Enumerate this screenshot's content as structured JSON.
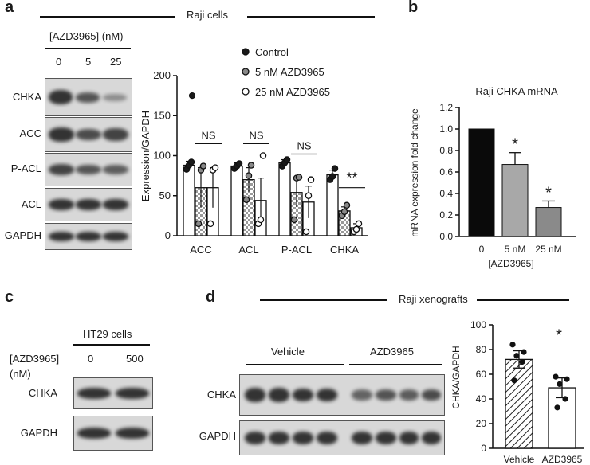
{
  "panels": {
    "a": {
      "label": "a",
      "title": "Raji cells",
      "treatment_label": "[AZD3965] (nM)",
      "lanes": [
        "0",
        "5",
        "25"
      ],
      "blot_rows": [
        "CHKA",
        "ACC",
        "P-ACL",
        "ACL",
        "GAPDH"
      ]
    },
    "b": {
      "label": "b",
      "title": "Raji CHKA mRNA",
      "xgroup_label": "[AZD3965]"
    },
    "c": {
      "label": "c",
      "title": "HT29 cells",
      "treatment_label_1": "[AZD3965]",
      "treatment_label_2": "(nM)",
      "lanes": [
        "0",
        "500"
      ],
      "blot_rows": [
        "CHKA",
        "GAPDH"
      ]
    },
    "d": {
      "label": "d",
      "title": "Raji xenografts",
      "groups": [
        "Vehicle",
        "AZD3965"
      ],
      "blot_rows": [
        "CHKA",
        "GAPDH"
      ]
    }
  },
  "chart_data": [
    {
      "id": "a",
      "type": "bar",
      "categories": [
        "ACC",
        "ACL",
        "P-ACL",
        "CHKA"
      ],
      "ylabel": "Expression/GAPDH",
      "ylim": [
        0,
        200
      ],
      "yticks": [
        0,
        50,
        100,
        150,
        200
      ],
      "legend_position": "top-right",
      "series": [
        {
          "name": "Control",
          "values": [
            88,
            87,
            91,
            76
          ],
          "errors": [
            5,
            4,
            4,
            6
          ],
          "points": [
            [
              83,
              88,
              92
            ],
            [
              84,
              87,
              90
            ],
            [
              87,
              91,
              95
            ],
            [
              70,
              74,
              84
            ]
          ],
          "color": "#ffffff",
          "dot": "#1a1a1a"
        },
        {
          "name": "5 nM AZD3965",
          "values": [
            60,
            70,
            54,
            31
          ],
          "errors": [
            25,
            15,
            18,
            5
          ],
          "points": [
            [
              15,
              82,
              87
            ],
            [
              45,
              75,
              88
            ],
            [
              20,
              72,
              73
            ],
            [
              25,
              30,
              38
            ]
          ],
          "color": "#e6e6e6",
          "dot": "#888888"
        },
        {
          "name": "25 nM AZD3965",
          "values": [
            60,
            44,
            42,
            10
          ],
          "errors": [
            25,
            28,
            20,
            5
          ],
          "points": [
            [
              15,
              82,
              85
            ],
            [
              15,
              20,
              100
            ],
            [
              5,
              50,
              70
            ],
            [
              5,
              8,
              15
            ]
          ],
          "color": "#ffffff",
          "dot": "#ffffff"
        }
      ],
      "control_extra": {
        "ACC": 175
      },
      "significance": [
        {
          "category": "ACC",
          "text": "NS"
        },
        {
          "category": "ACL",
          "text": "NS"
        },
        {
          "category": "P-ACL",
          "text": "NS"
        },
        {
          "category": "CHKA",
          "text": "**"
        }
      ]
    },
    {
      "id": "b",
      "type": "bar",
      "title": "Raji CHKA mRNA",
      "categories": [
        "0",
        "5 nM",
        "25 nM"
      ],
      "xlabel": "[AZD3965]",
      "ylabel": "mRNA expression fold change",
      "ylim": [
        0,
        1.2
      ],
      "yticks": [
        "0.0",
        "0.2",
        "0.4",
        "0.6",
        "0.8",
        "1.0",
        "1.2"
      ],
      "values": [
        1.0,
        0.67,
        0.27
      ],
      "errors": [
        0,
        0.11,
        0.06
      ],
      "colors": [
        "#0a0a0a",
        "#a8a8a8",
        "#8a8a8a"
      ],
      "significance": [
        "",
        "*",
        "*"
      ]
    },
    {
      "id": "d",
      "type": "bar",
      "categories": [
        "Vehicle",
        "AZD3965"
      ],
      "ylabel": "CHKA/GAPDH",
      "ylim": [
        0,
        100
      ],
      "yticks": [
        0,
        20,
        40,
        60,
        80,
        100
      ],
      "values": [
        72,
        49
      ],
      "errors": [
        7,
        8
      ],
      "points": [
        [
          55,
          70,
          75,
          78,
          84
        ],
        [
          33,
          40,
          52,
          56,
          58
        ]
      ],
      "significance": [
        "",
        "*"
      ]
    }
  ]
}
